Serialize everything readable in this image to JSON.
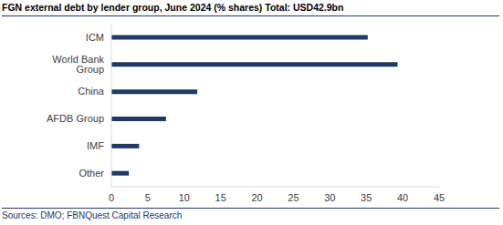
{
  "chart_data": {
    "type": "bar",
    "title": "FGN external debt by lender group, June 2024 (% shares) Total: USD42.9bn",
    "source": "Sources: DMO; FBNQuest Capital Research",
    "categories": [
      "ICM",
      "World Bank Group",
      "China",
      "AFDB Group",
      "IMF",
      "Other"
    ],
    "values": [
      35.2,
      39.3,
      11.8,
      7.5,
      3.8,
      2.4
    ],
    "color": "#1F3864",
    "orientation": "horizontal",
    "xlim": [
      0,
      45
    ],
    "xticks": [
      0,
      5,
      10,
      15,
      20,
      25,
      30,
      35,
      40,
      45
    ],
    "grid": false
  }
}
